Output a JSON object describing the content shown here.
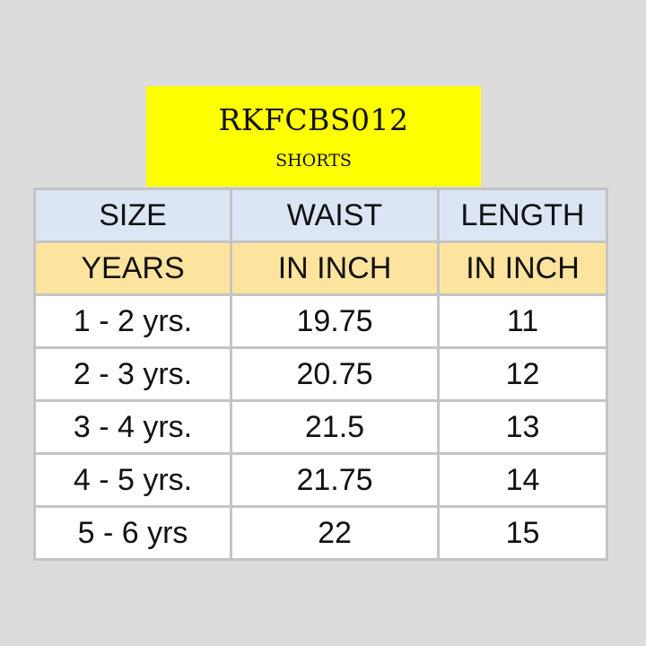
{
  "product": {
    "code": "RKFCBS012",
    "category": "SHORTS"
  },
  "colors": {
    "title_bg": "#ffff00",
    "header_bg": "#dbe5f3",
    "unit_bg": "#fde49e",
    "cell_bg": "#ffffff",
    "page_bg": "#dcdcdc"
  },
  "table": {
    "headers": [
      "SIZE",
      "WAIST",
      "LENGTH"
    ],
    "units": [
      "YEARS",
      "IN INCH",
      "IN INCH"
    ],
    "rows": [
      [
        "1 - 2 yrs.",
        "19.75",
        "11"
      ],
      [
        "2 - 3 yrs.",
        "20.75",
        "12"
      ],
      [
        "3 - 4 yrs.",
        "21.5",
        "13"
      ],
      [
        "4 - 5 yrs.",
        "21.75",
        "14"
      ],
      [
        "5 - 6 yrs",
        "22",
        "15"
      ]
    ]
  }
}
